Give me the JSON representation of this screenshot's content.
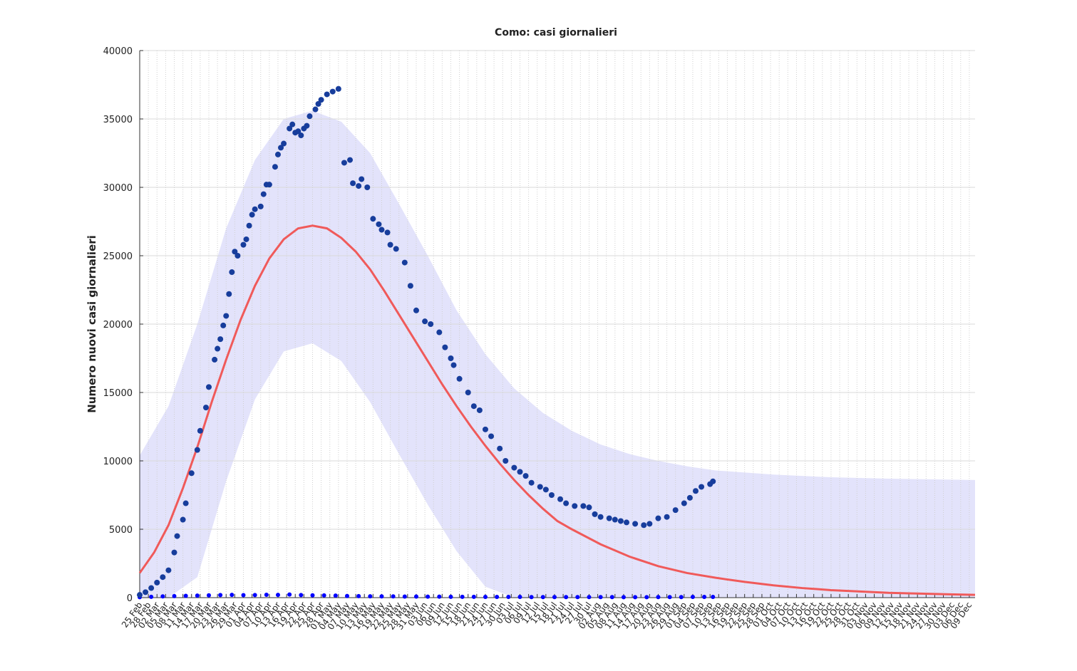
{
  "chart_data": {
    "type": "line",
    "title": "Como: casi giornalieri",
    "ylabel": "Numero nuovi casi giornalieri",
    "xlim": [
      0,
      290
    ],
    "ylim": [
      0,
      40000
    ],
    "yticks": [
      0,
      5000,
      10000,
      15000,
      20000,
      25000,
      30000,
      35000,
      40000
    ],
    "grid": true,
    "xticks": [
      {
        "value": 0,
        "label": "25 Feb"
      },
      {
        "value": 3,
        "label": "28 Feb"
      },
      {
        "value": 6,
        "label": "02 Mar"
      },
      {
        "value": 9,
        "label": "05 Mar"
      },
      {
        "value": 12,
        "label": "08 Mar"
      },
      {
        "value": 15,
        "label": "11 Mar"
      },
      {
        "value": 18,
        "label": "14 Mar"
      },
      {
        "value": 21,
        "label": "17 Mar"
      },
      {
        "value": 24,
        "label": "20 Mar"
      },
      {
        "value": 27,
        "label": "23 Mar"
      },
      {
        "value": 30,
        "label": "26 Mar"
      },
      {
        "value": 33,
        "label": "29 Mar"
      },
      {
        "value": 36,
        "label": "01 Apr"
      },
      {
        "value": 39,
        "label": "04 Apr"
      },
      {
        "value": 42,
        "label": "07 Apr"
      },
      {
        "value": 45,
        "label": "10 Apr"
      },
      {
        "value": 48,
        "label": "13 Apr"
      },
      {
        "value": 51,
        "label": "16 Apr"
      },
      {
        "value": 54,
        "label": "19 Apr"
      },
      {
        "value": 57,
        "label": "22 Apr"
      },
      {
        "value": 60,
        "label": "25 Apr"
      },
      {
        "value": 63,
        "label": "28 Apr"
      },
      {
        "value": 66,
        "label": "01 May"
      },
      {
        "value": 69,
        "label": "04 May"
      },
      {
        "value": 72,
        "label": "07 May"
      },
      {
        "value": 75,
        "label": "10 May"
      },
      {
        "value": 78,
        "label": "13 May"
      },
      {
        "value": 81,
        "label": "16 May"
      },
      {
        "value": 84,
        "label": "19 May"
      },
      {
        "value": 87,
        "label": "22 May"
      },
      {
        "value": 90,
        "label": "25 May"
      },
      {
        "value": 93,
        "label": "28 May"
      },
      {
        "value": 96,
        "label": "31 May"
      },
      {
        "value": 99,
        "label": "03 Jun"
      },
      {
        "value": 102,
        "label": "06 Jun"
      },
      {
        "value": 105,
        "label": "09 Jun"
      },
      {
        "value": 108,
        "label": "12 Jun"
      },
      {
        "value": 111,
        "label": "15 Jun"
      },
      {
        "value": 114,
        "label": "18 Jun"
      },
      {
        "value": 117,
        "label": "21 Jun"
      },
      {
        "value": 120,
        "label": "24 Jun"
      },
      {
        "value": 123,
        "label": "27 Jun"
      },
      {
        "value": 126,
        "label": "30 Jun"
      },
      {
        "value": 129,
        "label": "03 Jul"
      },
      {
        "value": 132,
        "label": "06 Jul"
      },
      {
        "value": 135,
        "label": "09 Jul"
      },
      {
        "value": 138,
        "label": "12 Jul"
      },
      {
        "value": 141,
        "label": "15 Jul"
      },
      {
        "value": 144,
        "label": "18 Jul"
      },
      {
        "value": 147,
        "label": "21 Jul"
      },
      {
        "value": 150,
        "label": "24 Jul"
      },
      {
        "value": 153,
        "label": "27 Jul"
      },
      {
        "value": 156,
        "label": "30 Jul"
      },
      {
        "value": 159,
        "label": "02 Aug"
      },
      {
        "value": 162,
        "label": "05 Aug"
      },
      {
        "value": 165,
        "label": "08 Aug"
      },
      {
        "value": 168,
        "label": "11 Aug"
      },
      {
        "value": 171,
        "label": "14 Aug"
      },
      {
        "value": 174,
        "label": "17 Aug"
      },
      {
        "value": 177,
        "label": "20 Aug"
      },
      {
        "value": 180,
        "label": "23 Aug"
      },
      {
        "value": 183,
        "label": "26 Aug"
      },
      {
        "value": 186,
        "label": "29 Aug"
      },
      {
        "value": 189,
        "label": "01 Sep"
      },
      {
        "value": 192,
        "label": "04 Sep"
      },
      {
        "value": 195,
        "label": "07 Sep"
      },
      {
        "value": 198,
        "label": "10 Sep"
      },
      {
        "value": 201,
        "label": "13 Sep"
      },
      {
        "value": 204,
        "label": "16 Sep"
      },
      {
        "value": 207,
        "label": "19 Sep"
      },
      {
        "value": 210,
        "label": "22 Sep"
      },
      {
        "value": 213,
        "label": "25 Sep"
      },
      {
        "value": 216,
        "label": "28 Sep"
      },
      {
        "value": 219,
        "label": "01 Oct"
      },
      {
        "value": 222,
        "label": "04 Oct"
      },
      {
        "value": 225,
        "label": "07 Oct"
      },
      {
        "value": 228,
        "label": "10 Oct"
      },
      {
        "value": 231,
        "label": "13 Oct"
      },
      {
        "value": 234,
        "label": "16 Oct"
      },
      {
        "value": 237,
        "label": "19 Oct"
      },
      {
        "value": 240,
        "label": "22 Oct"
      },
      {
        "value": 243,
        "label": "25 Oct"
      },
      {
        "value": 246,
        "label": "28 Oct"
      },
      {
        "value": 249,
        "label": "31 Oct"
      },
      {
        "value": 252,
        "label": "03 Nov"
      },
      {
        "value": 255,
        "label": "06 Nov"
      },
      {
        "value": 258,
        "label": "09 Nov"
      },
      {
        "value": 261,
        "label": "12 Nov"
      },
      {
        "value": 264,
        "label": "15 Nov"
      },
      {
        "value": 267,
        "label": "18 Nov"
      },
      {
        "value": 270,
        "label": "21 Nov"
      },
      {
        "value": 273,
        "label": "24 Nov"
      },
      {
        "value": 276,
        "label": "27 Nov"
      },
      {
        "value": 279,
        "label": "30 Nov"
      },
      {
        "value": 282,
        "label": "03 Dec"
      },
      {
        "value": 285,
        "label": "06 Dec"
      },
      {
        "value": 288,
        "label": "09 Dec"
      }
    ],
    "band": {
      "color": "#e3e3fb",
      "x": [
        0,
        10,
        20,
        30,
        40,
        50,
        60,
        70,
        80,
        90,
        100,
        110,
        120,
        130,
        140,
        150,
        160,
        170,
        180,
        190,
        200,
        220,
        240,
        260,
        290
      ],
      "upper": [
        10400,
        14000,
        20000,
        27000,
        32000,
        35000,
        35600,
        34800,
        32500,
        28800,
        25000,
        21000,
        17800,
        15300,
        13500,
        12200,
        11200,
        10500,
        10000,
        9600,
        9300,
        9000,
        8800,
        8700,
        8600
      ],
      "lower": [
        0,
        0,
        1500,
        8500,
        14500,
        18000,
        18600,
        17300,
        14300,
        10500,
        6800,
        3400,
        800,
        0,
        0,
        0,
        0,
        0,
        0,
        0,
        0,
        0,
        0,
        0,
        0
      ]
    },
    "series": [
      {
        "mark": "dot",
        "color": "#0000ff",
        "size": 3,
        "x": [
          0,
          4,
          8,
          12,
          16,
          20,
          24,
          28,
          32,
          36,
          40,
          44,
          48,
          52,
          56,
          60,
          64,
          68,
          72,
          76,
          80,
          84,
          88,
          92,
          96,
          100,
          104,
          108,
          112,
          116,
          120,
          124,
          128,
          132,
          136,
          140,
          144,
          148,
          152,
          156,
          160,
          164,
          168,
          172,
          176,
          180,
          184,
          188,
          192,
          196,
          199
        ],
        "values": [
          30,
          60,
          90,
          110,
          130,
          150,
          170,
          190,
          200,
          180,
          190,
          210,
          200,
          230,
          190,
          170,
          160,
          150,
          120,
          110,
          100,
          90,
          90,
          80,
          80,
          70,
          70,
          60,
          60,
          60,
          50,
          50,
          50,
          50,
          40,
          40,
          40,
          40,
          40,
          40,
          40,
          40,
          30,
          30,
          30,
          40,
          40,
          40,
          50,
          50,
          50
        ]
      },
      {
        "mark": "dot",
        "color": "#173d9c",
        "size": 4,
        "x": [
          0,
          2,
          4,
          6,
          8,
          10,
          12,
          13,
          15,
          16,
          18,
          20,
          21,
          23,
          24,
          26,
          27,
          28,
          29,
          30,
          31,
          32,
          33,
          34,
          36,
          37,
          38,
          39,
          40,
          42,
          43,
          44,
          45,
          47,
          48,
          49,
          50,
          52,
          53,
          54,
          55,
          56,
          57,
          58,
          59,
          61,
          62,
          63,
          65,
          67,
          69,
          71,
          73,
          74,
          76,
          77,
          79,
          81,
          83,
          84,
          86,
          87,
          89,
          92,
          94,
          96,
          99,
          101,
          104,
          106,
          108,
          109,
          111,
          114,
          116,
          118,
          120,
          122,
          125,
          127,
          130,
          132,
          134,
          136,
          139,
          141,
          143,
          146,
          148,
          151,
          154,
          156,
          158,
          160,
          163,
          165,
          167,
          169,
          172,
          175,
          177,
          180,
          183,
          186,
          189,
          191,
          193,
          195,
          198,
          199
        ],
        "values": [
          200,
          400,
          700,
          1100,
          1500,
          2000,
          3300,
          4500,
          5700,
          6900,
          9100,
          10800,
          12200,
          13900,
          15400,
          17400,
          18200,
          18900,
          19900,
          20600,
          22200,
          23800,
          25300,
          25000,
          25800,
          26200,
          27200,
          28000,
          28400,
          28600,
          29500,
          30200,
          30200,
          31500,
          32400,
          32900,
          33200,
          34300,
          34600,
          34000,
          34100,
          33800,
          34300,
          34500,
          35200,
          35700,
          36100,
          36400,
          36800,
          37000,
          37200,
          31800,
          32000,
          30300,
          30100,
          30600,
          30000,
          27700,
          27300,
          26900,
          26700,
          25800,
          25500,
          24500,
          22800,
          21000,
          20200,
          20000,
          19400,
          18300,
          17500,
          17000,
          16000,
          15000,
          14000,
          13700,
          12300,
          11800,
          10900,
          10000,
          9500,
          9200,
          8900,
          8400,
          8100,
          7900,
          7500,
          7200,
          6900,
          6700,
          6700,
          6600,
          6100,
          5900,
          5800,
          5700,
          5600,
          5500,
          5400,
          5300,
          5400,
          5800,
          5900,
          6400,
          6900,
          7300,
          7800,
          8100,
          8300,
          8500
        ]
      },
      {
        "mark": "line",
        "color": "#f05a5a",
        "size": 3,
        "x": [
          0,
          5,
          10,
          15,
          20,
          25,
          30,
          35,
          40,
          45,
          50,
          55,
          60,
          65,
          70,
          75,
          80,
          85,
          90,
          95,
          100,
          105,
          110,
          115,
          120,
          125,
          130,
          135,
          140,
          145,
          150,
          160,
          170,
          180,
          190,
          200,
          210,
          220,
          230,
          240,
          250,
          260,
          270,
          280,
          290
        ],
        "values": [
          1800,
          3300,
          5300,
          8000,
          11000,
          14300,
          17400,
          20300,
          22800,
          24800,
          26200,
          27000,
          27200,
          27000,
          26300,
          25300,
          24000,
          22400,
          20700,
          19000,
          17300,
          15600,
          14000,
          12500,
          11100,
          9800,
          8600,
          7500,
          6500,
          5600,
          5000,
          3900,
          3000,
          2300,
          1800,
          1450,
          1150,
          900,
          700,
          550,
          450,
          350,
          300,
          250,
          200
        ]
      }
    ]
  }
}
